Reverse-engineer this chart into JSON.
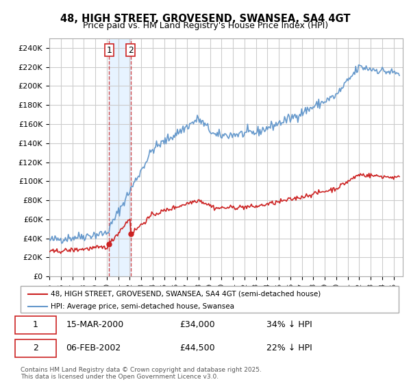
{
  "title_line1": "48, HIGH STREET, GROVESEND, SWANSEA, SA4 4GT",
  "title_line2": "Price paid vs. HM Land Registry's House Price Index (HPI)",
  "ylabel_ticks": [
    "£0",
    "£20K",
    "£40K",
    "£60K",
    "£80K",
    "£100K",
    "£120K",
    "£140K",
    "£160K",
    "£180K",
    "£200K",
    "£220K",
    "£240K"
  ],
  "ytick_values": [
    0,
    20000,
    40000,
    60000,
    80000,
    100000,
    120000,
    140000,
    160000,
    180000,
    200000,
    220000,
    240000
  ],
  "hpi_color": "#6699cc",
  "price_color": "#cc2222",
  "transaction1_date_num": 2000.21,
  "transaction1_price": 34000,
  "transaction1_label": "1",
  "transaction2_date_num": 2002.09,
  "transaction2_price": 44500,
  "transaction2_label": "2",
  "legend_property": "48, HIGH STREET, GROVESEND, SWANSEA, SA4 4GT (semi-detached house)",
  "legend_hpi": "HPI: Average price, semi-detached house, Swansea",
  "table_row1": [
    "1",
    "15-MAR-2000",
    "£34,000",
    "34% ↓ HPI"
  ],
  "table_row2": [
    "2",
    "06-FEB-2002",
    "£44,500",
    "22% ↓ HPI"
  ],
  "footnote": "Contains HM Land Registry data © Crown copyright and database right 2025.\nThis data is licensed under the Open Government Licence v3.0.",
  "bg_color": "#ffffff",
  "plot_bg_color": "#ffffff",
  "grid_color": "#cccccc",
  "shading_color": "#ddeeff"
}
